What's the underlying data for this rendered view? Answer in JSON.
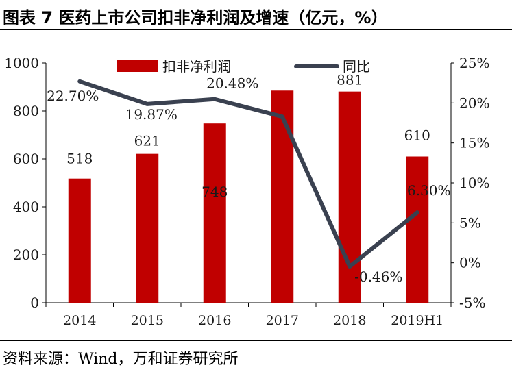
{
  "title": "图表 7    医药上市公司扣非净利润及增速（亿元，%）",
  "source": "资料来源：Wind，万和证券研究所",
  "colors": {
    "bar": "#C00000",
    "line": "#3A4150",
    "axis": "#000000"
  },
  "chart_data": {
    "type": "bar",
    "categories": [
      "2014",
      "2015",
      "2016",
      "2017",
      "2018",
      "2019H1"
    ],
    "series": [
      {
        "name": "扣非净利润",
        "type": "bar",
        "axis": "left",
        "values": [
          518,
          621,
          748,
          885,
          881,
          610
        ],
        "labels": [
          "518",
          "621",
          "748",
          "",
          "881",
          "610"
        ]
      },
      {
        "name": "同比",
        "type": "line",
        "axis": "right",
        "values": [
          22.7,
          19.87,
          20.48,
          18.3,
          -0.46,
          6.3
        ],
        "labels": [
          "22.70%",
          "19.87%",
          "20.48%",
          "",
          "-0.46%",
          "6.30%"
        ]
      }
    ],
    "y_left": {
      "min": 0,
      "max": 1000,
      "ticks": [
        0,
        200,
        400,
        600,
        800,
        1000
      ]
    },
    "y_right": {
      "min": -5,
      "max": 25,
      "ticks": [
        "-5%",
        "0%",
        "5%",
        "10%",
        "15%",
        "20%",
        "25%"
      ]
    },
    "legend_position": "top"
  }
}
